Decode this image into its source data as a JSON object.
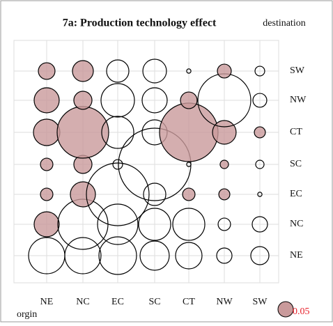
{
  "chart_data": {
    "type": "bubble-matrix",
    "title": "7a: Production technology effect",
    "y_label": "destination",
    "x_label": "orgin",
    "x_categories": [
      "NE",
      "NC",
      "EC",
      "SC",
      "CT",
      "NW",
      "SW"
    ],
    "y_categories": [
      "NE",
      "NC",
      "EC",
      "SC",
      "CT",
      "NW",
      "SW"
    ],
    "values": [
      [
        -0.279,
        -0.279,
        -0.301,
        -0.182,
        -0.149,
        -0.05,
        -0.07
      ],
      [
        0.134,
        -0.535,
        -0.347,
        -0.219,
        -0.219,
        -0.033,
        -0.05
      ],
      [
        0.033,
        0.134,
        -0.836,
        -0.106,
        0.033,
        0.026,
        -0.004
      ],
      [
        0.033,
        0.07,
        -0.02,
        -1.117,
        -0.004,
        0.015,
        -0.015
      ],
      [
        0.149,
        0.565,
        -0.219,
        -0.134,
        0.729,
        0.119,
        0.026
      ],
      [
        0.134,
        0.07,
        -0.238,
        -0.134,
        0.059,
        -0.596,
        -0.041
      ],
      [
        0.059,
        0.093,
        -0.106,
        -0.119,
        -0.004,
        0.041,
        -0.02
      ]
    ],
    "legend_size": 0.05,
    "positive_color": "#c99a9b",
    "legend_text_color": "#e8202a",
    "grid": true
  }
}
